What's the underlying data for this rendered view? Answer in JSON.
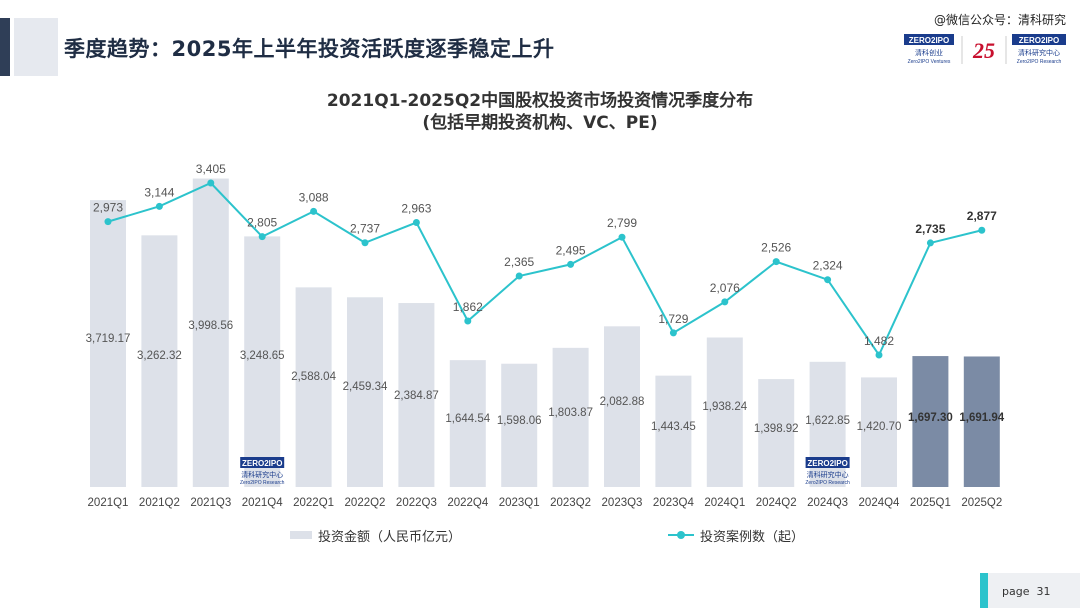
{
  "header": {
    "title": "季度趋势：2025年上半年投资活跃度逐季稳定上升",
    "wechat": "@微信公众号：清科研究",
    "logo_left_text": "ZERO2IPO",
    "logo_left_sub": "清科创业",
    "logo_left_en": "Zero2IPO Ventures",
    "logo_mid": "25",
    "logo_right_text": "ZERO2IPO",
    "logo_right_sub": "清科研究中心",
    "logo_right_en": "Zero2IPO Research"
  },
  "watermark": {
    "text": "ZERO2IPO",
    "sub": "清科研究中心",
    "en": "Zero2IPO Research"
  },
  "chart_data": {
    "type": "bar",
    "title": "2021Q1-2025Q2中国股权投资市场投资情况季度分布",
    "subtitle": "(包括早期投资机构、VC、PE)",
    "categories": [
      "2021Q1",
      "2021Q2",
      "2021Q3",
      "2021Q4",
      "2022Q1",
      "2022Q2",
      "2022Q3",
      "2022Q4",
      "2023Q1",
      "2023Q2",
      "2023Q3",
      "2023Q4",
      "2024Q1",
      "2024Q2",
      "2024Q3",
      "2024Q4",
      "2025Q1",
      "2025Q2"
    ],
    "series": [
      {
        "name": "投资金额（人民币亿元）",
        "kind": "bar",
        "values": [
          3719.17,
          3262.32,
          3998.56,
          3248.65,
          2588.04,
          2459.34,
          2384.87,
          1644.54,
          1598.06,
          1803.87,
          2082.88,
          1443.45,
          1938.24,
          1398.92,
          1622.85,
          1420.7,
          1697.3,
          1691.94
        ],
        "labels": [
          "3,719.17",
          "3,262.32",
          "3,998.56",
          "3,248.65",
          "2,588.04",
          "2,459.34",
          "2,384.87",
          "1,644.54",
          "1,598.06",
          "1,803.87",
          "2,082.88",
          "1,443.45",
          "1,938.24",
          "1,398.92",
          "1,622.85",
          "1,420.70",
          "1,697.30",
          "1,691.94"
        ]
      },
      {
        "name": "投资案例数（起）",
        "kind": "line",
        "values": [
          2973,
          3144,
          3405,
          2805,
          3088,
          2737,
          2963,
          1862,
          2365,
          2495,
          2799,
          1729,
          2076,
          2526,
          2324,
          1482,
          2735,
          2877
        ],
        "labels": [
          "2,973",
          "3,144",
          "3,405",
          "2,805",
          "3,088",
          "2,737",
          "2,963",
          "1,862",
          "2,365",
          "2,495",
          "2,799",
          "1,729",
          "2,076",
          "2,526",
          "2,324",
          "1,482",
          "2,735",
          "2,877"
        ]
      }
    ],
    "bar_ylim": [
      0,
      4200
    ],
    "line_ylim": [
      600,
      3500
    ],
    "highlight_last": 2,
    "grid": false,
    "legend_position": "bottom",
    "colors": {
      "bar": "#dde1e9",
      "bar_highlight": "#7b8ba5",
      "line": "#2cc3cc",
      "label": "#555555"
    }
  },
  "footer": {
    "page_label": "page",
    "page_number": "31"
  }
}
